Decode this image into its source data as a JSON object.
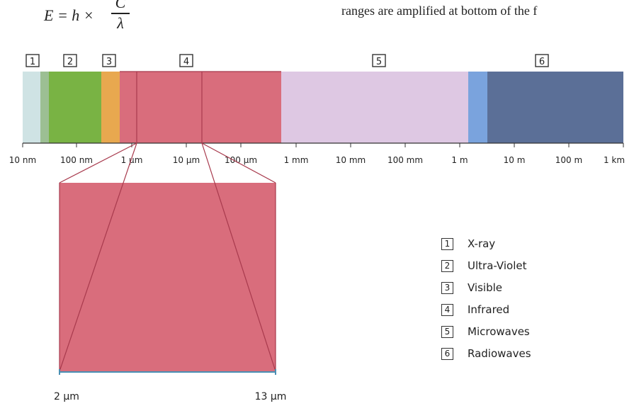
{
  "formula": {
    "lhs": "E = h ×",
    "numerator": "C",
    "denominator": "λ"
  },
  "caption": "ranges are amplified at bottom of the f",
  "spectrum": {
    "band_numbers": [
      "1",
      "2",
      "3",
      "4",
      "5",
      "6"
    ],
    "ticks": [
      "10 nm",
      "100 nm",
      "1 µm",
      "10 µm",
      "100 µm",
      "1 mm",
      "10 mm",
      "100 mm",
      "1 m",
      "10 m",
      "100 m",
      "1 km"
    ],
    "colors": {
      "xray": "#cfe3e4",
      "xray_edge": "#9cbf93",
      "uv": "#79b344",
      "visible": "#e8a84f",
      "infrared": "#d96d7c",
      "microwave": "#dec8e3",
      "radio_edge": "#7aa3dd",
      "radio": "#5b6f97"
    }
  },
  "zoom": {
    "min_label": "2 µm",
    "max_label": "13 µm",
    "color": "#d96d7c",
    "line_color": "#4a8fb3"
  },
  "legend": [
    {
      "number": "1",
      "label": "X-ray"
    },
    {
      "number": "2",
      "label": "Ultra-Violet"
    },
    {
      "number": "3",
      "label": "Visible"
    },
    {
      "number": "4",
      "label": "Infrared"
    },
    {
      "number": "5",
      "label": "Microwaves"
    },
    {
      "number": "6",
      "label": "Radiowaves"
    }
  ]
}
